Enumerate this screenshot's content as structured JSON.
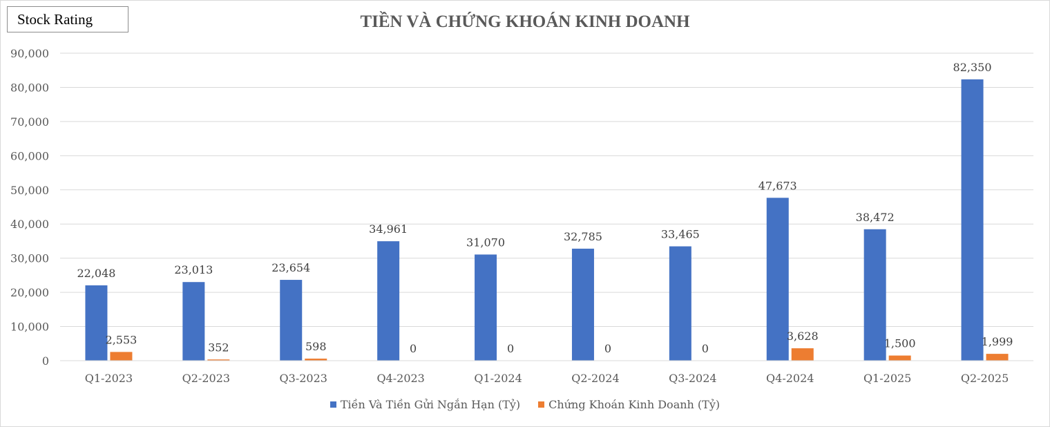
{
  "badge": {
    "label": "Stock Rating"
  },
  "chart_data": {
    "type": "bar",
    "title": "TIỀN VÀ CHỨNG KHOÁN KINH DOANH",
    "categories": [
      "Q1-2023",
      "Q2-2023",
      "Q3-2023",
      "Q4-2023",
      "Q1-2024",
      "Q2-2024",
      "Q3-2024",
      "Q4-2024",
      "Q1-2025",
      "Q2-2025"
    ],
    "series": [
      {
        "name": "Tiền Và Tiền Gửi Ngắn Hạn (Tỷ)",
        "color": "#4472c4",
        "values": [
          22048,
          23013,
          23654,
          34961,
          31070,
          32785,
          33465,
          47673,
          38472,
          82350
        ],
        "labels": [
          "22,048",
          "23,013",
          "23,654",
          "34,961",
          "31,070",
          "32,785",
          "33,465",
          "47,673",
          "38,472",
          "82,350"
        ]
      },
      {
        "name": "Chứng Khoán Kinh Doanh (Tỷ)",
        "color": "#ed7d31",
        "values": [
          2553,
          352,
          598,
          0,
          0,
          0,
          0,
          3628,
          1500,
          1999
        ],
        "labels": [
          "2,553",
          "352",
          "598",
          "0",
          "0",
          "0",
          "0",
          "3,628",
          "1,500",
          "1,999"
        ]
      }
    ],
    "yticks": [
      "0",
      "10,000",
      "20,000",
      "30,000",
      "40,000",
      "50,000",
      "60,000",
      "70,000",
      "80,000",
      "90,000"
    ],
    "ylim": [
      0,
      90000
    ],
    "grid": true,
    "legend_position": "bottom"
  }
}
